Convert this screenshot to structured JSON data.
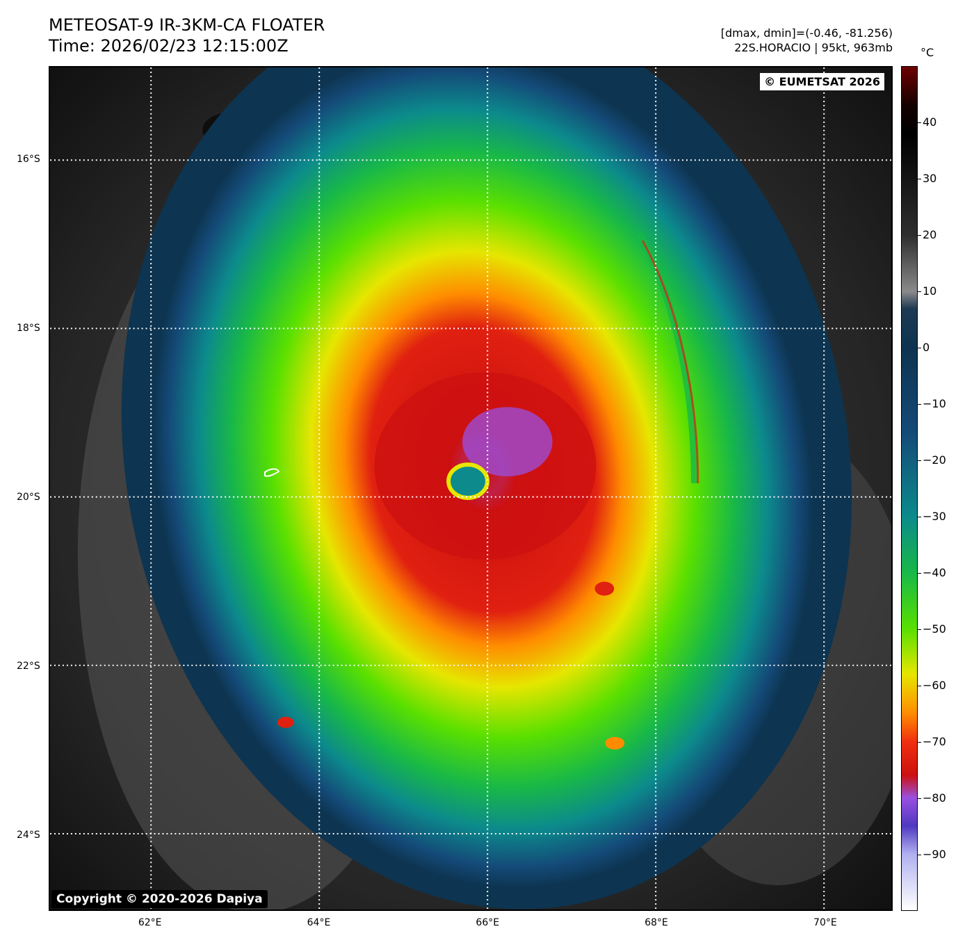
{
  "header": {
    "title_line1": "METEOSAT-9 IR-3KM-CA FLOATER",
    "title_line2": "Time: 2026/02/23 12:15:00Z",
    "meta_line1": "[dmax, dmin]=(-0.46, -81.256)",
    "meta_line2": "22S.HORACIO | 95kt, 963mb"
  },
  "map": {
    "lon_range": [
      60.8,
      70.8
    ],
    "lat_range": [
      -14.9,
      -24.9
    ],
    "lat_labels": [
      {
        "value": -16,
        "label": "16°S"
      },
      {
        "value": -18,
        "label": "18°S"
      },
      {
        "value": -20,
        "label": "20°S"
      },
      {
        "value": -22,
        "label": "22°S"
      },
      {
        "value": -24,
        "label": "24°S"
      }
    ],
    "lon_labels": [
      {
        "value": 62,
        "label": "62°E"
      },
      {
        "value": 64,
        "label": "64°E"
      },
      {
        "value": 66,
        "label": "66°E"
      },
      {
        "value": 68,
        "label": "68°E"
      },
      {
        "value": 70,
        "label": "70°E"
      }
    ],
    "storm_center": {
      "lon": 65.8,
      "lat": -19.85
    }
  },
  "badges": {
    "eumetsat": "© EUMETSAT 2026",
    "copyright": "Copyright © 2020-2026 Dapiya"
  },
  "colorbar": {
    "unit": "°C",
    "range": [
      50,
      -100
    ],
    "ticks": [
      {
        "value": 40,
        "label": "40"
      },
      {
        "value": 30,
        "label": "30"
      },
      {
        "value": 20,
        "label": "20"
      },
      {
        "value": 10,
        "label": "10"
      },
      {
        "value": 0,
        "label": "0"
      },
      {
        "value": -10,
        "label": "−10"
      },
      {
        "value": -20,
        "label": "−20"
      },
      {
        "value": -30,
        "label": "−30"
      },
      {
        "value": -40,
        "label": "−40"
      },
      {
        "value": -50,
        "label": "−50"
      },
      {
        "value": -60,
        "label": "−60"
      },
      {
        "value": -70,
        "label": "−70"
      },
      {
        "value": -80,
        "label": "−80"
      },
      {
        "value": -90,
        "label": "−90"
      }
    ],
    "stops": [
      {
        "value": 50,
        "color": "#6e0000"
      },
      {
        "value": 43,
        "color": "#140000"
      },
      {
        "value": 38,
        "color": "#000000"
      },
      {
        "value": 20,
        "color": "#2e2e2e"
      },
      {
        "value": 10,
        "color": "#8a8a8a"
      },
      {
        "value": 7,
        "color": "#1e3a52"
      },
      {
        "value": 0,
        "color": "#0d3450"
      },
      {
        "value": -15,
        "color": "#144a78"
      },
      {
        "value": -30,
        "color": "#0c8a8c"
      },
      {
        "value": -40,
        "color": "#18b848"
      },
      {
        "value": -50,
        "color": "#5ae000"
      },
      {
        "value": -58,
        "color": "#e6e600"
      },
      {
        "value": -65,
        "color": "#ff8c00"
      },
      {
        "value": -70,
        "color": "#f03010"
      },
      {
        "value": -76,
        "color": "#cc1010"
      },
      {
        "value": -80,
        "color": "#9a50e0"
      },
      {
        "value": -85,
        "color": "#5038c0"
      },
      {
        "value": -90,
        "color": "#b0b0f0"
      },
      {
        "value": -100,
        "color": "#ffffff"
      }
    ]
  }
}
